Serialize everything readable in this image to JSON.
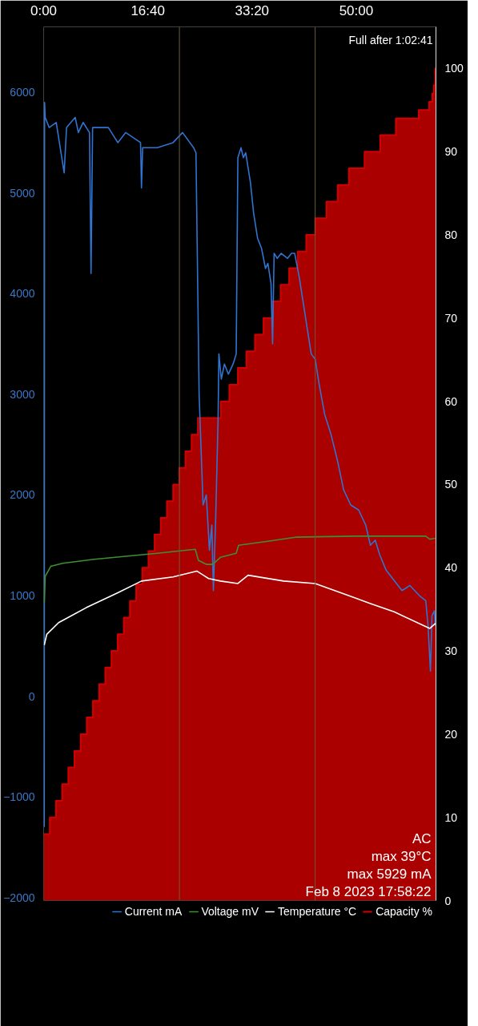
{
  "chart_data": {
    "type": "line",
    "legend": "bottom",
    "grid": false,
    "xlim": [
      0,
      3765
    ],
    "ylim": [
      -2030,
      6650
    ],
    "y2lim": [
      0,
      105
    ],
    "xticks": [
      {
        "value": 0,
        "label": "0:00"
      },
      {
        "value": 1000,
        "label": "16:40"
      },
      {
        "value": 2000,
        "label": "33:20"
      },
      {
        "value": 3000,
        "label": "50:00"
      }
    ],
    "yticks": [
      -2000,
      -1000,
      0,
      1000,
      2000,
      3000,
      4000,
      5000,
      6000
    ],
    "y2ticks": [
      0,
      10,
      20,
      30,
      40,
      50,
      60,
      70,
      80,
      90,
      100
    ],
    "annotations": [
      "Full after 1:02:41",
      "AC",
      "max 39°C",
      "max 5929 mA",
      "Feb 8 2023 17:58:22"
    ],
    "ref_lines": [
      {
        "axis": "x",
        "value": 1303,
        "label": null,
        "color": "#6b5d3a"
      },
      {
        "axis": "x",
        "value": 2606,
        "label": null,
        "color": "#6b5d3a"
      }
    ],
    "series": [
      {
        "name": "Capacity %",
        "type": "area",
        "axis": "y2",
        "color": "#d40000",
        "x": [
          0,
          59,
          59,
          118,
          118,
          178,
          178,
          237,
          237,
          296,
          296,
          355,
          355,
          414,
          414,
          473,
          473,
          533,
          533,
          592,
          592,
          651,
          651,
          710,
          710,
          769,
          769,
          828,
          828,
          888,
          888,
          947,
          947,
          1006,
          1006,
          1065,
          1065,
          1124,
          1124,
          1183,
          1183,
          1243,
          1243,
          1302,
          1302,
          1361,
          1361,
          1420,
          1420,
          1480,
          1480,
          1700,
          1700,
          1782,
          1782,
          1864,
          1864,
          1946,
          1946,
          2028,
          2028,
          2110,
          2110,
          2192,
          2192,
          2274,
          2274,
          2356,
          2356,
          2438,
          2438,
          2520,
          2520,
          2606,
          2606,
          2714,
          2714,
          2822,
          2822,
          2930,
          2930,
          3080,
          3080,
          3230,
          3230,
          3380,
          3380,
          3600,
          3600,
          3700,
          3700,
          3730,
          3730,
          3745,
          3745,
          3758,
          3758,
          3765
        ],
        "values": [
          8,
          8,
          10,
          10,
          12,
          12,
          14,
          14,
          16,
          16,
          18,
          18,
          20,
          20,
          22,
          22,
          24,
          24,
          26,
          26,
          28,
          28,
          30,
          30,
          32,
          32,
          34,
          34,
          36,
          36,
          38,
          38,
          40,
          40,
          42,
          42,
          44,
          44,
          46,
          46,
          48,
          48,
          50,
          50,
          52,
          52,
          54,
          54,
          56,
          56,
          58,
          58,
          60,
          60,
          62,
          62,
          64,
          64,
          66,
          66,
          68,
          68,
          70,
          70,
          72,
          72,
          74,
          74,
          76,
          76,
          78,
          78,
          80,
          80,
          82,
          82,
          84,
          84,
          86,
          86,
          88,
          88,
          90,
          90,
          92,
          92,
          94,
          94,
          95,
          95,
          96,
          96,
          97,
          97,
          98,
          98,
          100,
          100
        ]
      },
      {
        "name": "Current mA",
        "color": "#2f74d0",
        "x": [
          6,
          9,
          15,
          53,
          121,
          197,
          220,
          303,
          333,
          379,
          440,
          455,
          470,
          621,
          712,
          788,
          930,
          939,
          950,
          1091,
          1242,
          1333,
          1439,
          1462,
          1492,
          1530,
          1561,
          1591,
          1614,
          1629,
          1652,
          1674,
          1682,
          1705,
          1735,
          1773,
          1818,
          1848,
          1864,
          1894,
          1917,
          1939,
          1985,
          2015,
          2053,
          2091,
          2129,
          2152,
          2182,
          2197,
          2212,
          2242,
          2280,
          2341,
          2379,
          2409,
          2455,
          2515,
          2568,
          2606,
          2644,
          2697,
          2758,
          2818,
          2879,
          2947,
          3023,
          3091,
          3136,
          3182,
          3227,
          3288,
          3364,
          3439,
          3515,
          3606,
          3667,
          3689,
          3712,
          3727,
          3750,
          3758
        ],
        "values": [
          -1300,
          5900,
          5750,
          5650,
          5700,
          5200,
          5650,
          5750,
          5600,
          5700,
          5600,
          4200,
          5650,
          5650,
          5500,
          5600,
          5500,
          5050,
          5450,
          5450,
          5500,
          5600,
          5450,
          5400,
          3000,
          1900,
          2000,
          1450,
          1700,
          1050,
          1800,
          2750,
          3400,
          3150,
          3300,
          3200,
          3300,
          3400,
          5350,
          5450,
          5350,
          5400,
          5100,
          4800,
          4550,
          4450,
          4250,
          4300,
          4100,
          3500,
          4400,
          4350,
          4400,
          4350,
          4400,
          4400,
          4150,
          3750,
          3400,
          3350,
          3100,
          2800,
          2600,
          2350,
          2050,
          1900,
          1850,
          1700,
          1500,
          1550,
          1400,
          1250,
          1150,
          1050,
          1100,
          1000,
          950,
          700,
          250,
          800,
          850,
          700
        ]
      },
      {
        "name": "Voltage mV",
        "color": "#3f8f32",
        "x": [
          6,
          15,
          68,
          182,
          485,
          788,
          1091,
          1455,
          1485,
          1561,
          1621,
          1697,
          1848,
          1871,
          2152,
          2417,
          2985,
          3667,
          3705,
          3758
        ],
        "values": [
          930,
          1190,
          1290,
          1320,
          1360,
          1390,
          1420,
          1460,
          1350,
          1310,
          1310,
          1380,
          1420,
          1500,
          1540,
          1580,
          1590,
          1590,
          1560,
          1570
        ]
      },
      {
        "name": "Temperature °C",
        "axis": "y2",
        "color": "#ffffff",
        "x": [
          6,
          30,
          144,
          409,
          712,
          939,
          1242,
          1470,
          1583,
          1697,
          1864,
          1962,
          2303,
          2606,
          2985,
          3136,
          3364,
          3705,
          3758
        ],
        "values": [
          30.7,
          32.0,
          33.4,
          35.2,
          37.0,
          38.4,
          38.9,
          39.6,
          38.7,
          38.4,
          38.1,
          39.1,
          38.4,
          38.1,
          36.4,
          35.7,
          34.7,
          32.7,
          33.3
        ]
      }
    ]
  }
}
